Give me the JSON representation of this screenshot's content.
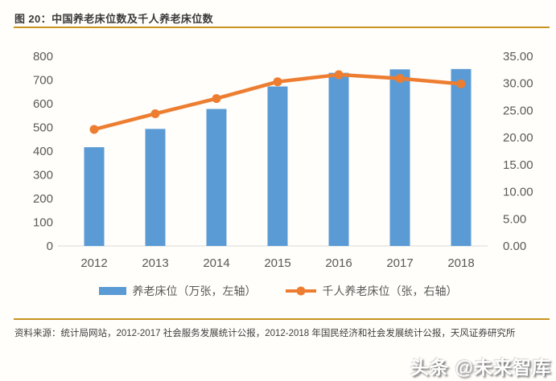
{
  "figure": {
    "title": "图 20：中国养老床位数及千人养老床位数",
    "source": "资料来源：统计局网站，2012-2017 社会服务发展统计公报，2012-2018 年国民经济和社会发展统计公报，天风证券研究所",
    "watermark": "头条 @未来智库"
  },
  "colors": {
    "bar_series": "#5B9BD5",
    "line_series": "#ED7D31",
    "divider_rule": "#C9941F",
    "axis_text": "#595959",
    "axis_line": "#D9D9D9",
    "title_text": "#3A3A3A",
    "source_text": "#404040"
  },
  "chart_data": {
    "type": "combo",
    "categories": [
      "2012",
      "2013",
      "2014",
      "2015",
      "2016",
      "2017",
      "2018"
    ],
    "series": [
      {
        "name": "养老床位",
        "legend": "养老床位（万张，左轴）",
        "chart_type": "bar",
        "axis": "left",
        "values": [
          416.5,
          493.7,
          577.8,
          672.7,
          730.2,
          744.8,
          746.3
        ]
      },
      {
        "name": "千人养老床位",
        "legend": "千人养老床位（张，右轴）",
        "chart_type": "line",
        "axis": "right",
        "values": [
          21.5,
          24.4,
          27.2,
          30.3,
          31.6,
          30.9,
          29.9
        ]
      }
    ],
    "left_axis": {
      "min": 0,
      "max": 800,
      "step": 100,
      "tick_labels": [
        "0",
        "100",
        "200",
        "300",
        "400",
        "500",
        "600",
        "700",
        "800"
      ]
    },
    "right_axis": {
      "min": 0,
      "max": 35,
      "step": 5,
      "tick_labels": [
        "0.00",
        "5.00",
        "10.00",
        "15.00",
        "20.00",
        "25.00",
        "30.00",
        "35.00"
      ]
    },
    "grid": false,
    "legend_position": "bottom"
  }
}
